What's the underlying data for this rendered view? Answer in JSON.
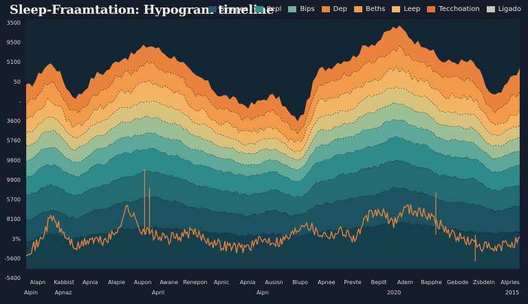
{
  "title": "Sleep-Fraamtation: Hypogram timeline",
  "legend": [
    {
      "label": "Semgee",
      "color": "#1f5966"
    },
    {
      "label": "Sepl",
      "color": "#33918e"
    },
    {
      "label": "Bips",
      "color": "#72b29d"
    },
    {
      "label": "Dep",
      "color": "#e8823c"
    },
    {
      "label": "Beths",
      "color": "#f09a4a"
    },
    {
      "label": "Leep",
      "color": "#f3b565"
    },
    {
      "label": "Tecchoation",
      "color": "#e6713a"
    },
    {
      "label": "Ligado",
      "color": "#c9c6bf"
    }
  ],
  "chart_data": {
    "type": "area",
    "title": "Sleep-Fraamtation: Hypogram timeline",
    "y_tick_labels": [
      "3500",
      "9500",
      "5100",
      "50",
      "-",
      "3600",
      "5760",
      "9800",
      "9900",
      "5700",
      "8100",
      "3%",
      "-5600",
      "-5400"
    ],
    "x_tick_labels_row1": [
      "Alapn",
      "Kabbist",
      "Apnia",
      "Alapie",
      "Aupon",
      "Awane",
      "Renepon",
      "Apnic",
      "Apnia",
      "Ausisn",
      "Blupo",
      "Apnee",
      "Prevte",
      "Beplit",
      "Adem",
      "Bapphe",
      "Gebode",
      "Zsbdein",
      "Alpries"
    ],
    "x_tick_labels_row2": [
      "Alpin",
      "Apnaz",
      "April",
      "Aipn",
      "2020",
      "2015"
    ],
    "x": [
      0,
      0.05,
      0.1,
      0.15,
      0.2,
      0.25,
      0.3,
      0.35,
      0.4,
      0.45,
      0.5,
      0.55,
      0.6,
      0.65,
      0.7,
      0.75,
      0.8,
      0.85,
      0.9,
      0.95,
      1.0
    ],
    "series": [
      {
        "color": "#e8823c",
        "values": [
          0.74,
          0.84,
          0.7,
          0.8,
          0.87,
          0.92,
          0.87,
          0.78,
          0.7,
          0.66,
          0.7,
          0.6,
          0.82,
          0.86,
          0.93,
          1.0,
          0.93,
          0.85,
          0.85,
          0.7,
          0.81
        ]
      },
      {
        "color": "#f09a4a",
        "values": [
          0.67,
          0.76,
          0.63,
          0.72,
          0.8,
          0.84,
          0.8,
          0.71,
          0.64,
          0.6,
          0.63,
          0.55,
          0.75,
          0.79,
          0.85,
          0.91,
          0.85,
          0.78,
          0.77,
          0.64,
          0.71
        ]
      },
      {
        "color": "#f3b565",
        "values": [
          0.6,
          0.68,
          0.57,
          0.65,
          0.72,
          0.76,
          0.72,
          0.64,
          0.58,
          0.54,
          0.57,
          0.5,
          0.68,
          0.71,
          0.77,
          0.82,
          0.77,
          0.7,
          0.69,
          0.58,
          0.63
        ]
      },
      {
        "color": "#d9c27c",
        "values": [
          0.54,
          0.61,
          0.52,
          0.59,
          0.65,
          0.68,
          0.65,
          0.58,
          0.53,
          0.49,
          0.52,
          0.46,
          0.61,
          0.64,
          0.7,
          0.74,
          0.7,
          0.63,
          0.62,
          0.53,
          0.57
        ]
      },
      {
        "color": "#9cbf95",
        "values": [
          0.48,
          0.55,
          0.47,
          0.53,
          0.59,
          0.61,
          0.58,
          0.52,
          0.48,
          0.45,
          0.47,
          0.42,
          0.55,
          0.58,
          0.63,
          0.67,
          0.63,
          0.57,
          0.56,
          0.48,
          0.52
        ]
      },
      {
        "color": "#5ea89a",
        "values": [
          0.42,
          0.48,
          0.41,
          0.47,
          0.52,
          0.54,
          0.51,
          0.46,
          0.43,
          0.4,
          0.42,
          0.38,
          0.49,
          0.52,
          0.56,
          0.6,
          0.56,
          0.51,
          0.5,
          0.43,
          0.46
        ]
      },
      {
        "color": "#2f8b8a",
        "values": [
          0.35,
          0.4,
          0.35,
          0.4,
          0.45,
          0.47,
          0.44,
          0.4,
          0.37,
          0.35,
          0.37,
          0.33,
          0.42,
          0.45,
          0.48,
          0.52,
          0.49,
          0.44,
          0.43,
          0.37,
          0.4
        ]
      },
      {
        "color": "#236d72",
        "values": [
          0.27,
          0.31,
          0.27,
          0.31,
          0.35,
          0.37,
          0.35,
          0.31,
          0.29,
          0.27,
          0.29,
          0.26,
          0.33,
          0.36,
          0.39,
          0.42,
          0.39,
          0.35,
          0.34,
          0.29,
          0.31
        ]
      },
      {
        "color": "#1b5360",
        "values": [
          0.16,
          0.2,
          0.17,
          0.21,
          0.24,
          0.26,
          0.24,
          0.21,
          0.19,
          0.18,
          0.2,
          0.18,
          0.23,
          0.25,
          0.27,
          0.3,
          0.28,
          0.24,
          0.23,
          0.2,
          0.22
        ]
      },
      {
        "color": "#163f4e",
        "values": [
          0.07,
          0.1,
          0.08,
          0.1,
          0.12,
          0.13,
          0.12,
          0.11,
          0.1,
          0.09,
          0.1,
          0.09,
          0.11,
          0.12,
          0.13,
          0.15,
          0.14,
          0.12,
          0.11,
          0.1,
          0.11
        ]
      }
    ],
    "fragmentation_line": {
      "color": "#e8823c",
      "values": [
        0.05,
        0.08,
        0.2,
        0.12,
        0.06,
        0.1,
        0.09,
        0.12,
        0.24,
        0.15,
        0.12,
        0.1,
        0.11,
        0.13,
        0.11,
        0.08,
        0.07,
        0.06,
        0.08,
        0.1,
        0.09,
        0.12,
        0.18,
        0.13,
        0.12,
        0.14,
        0.1,
        0.2,
        0.22,
        0.17,
        0.24,
        0.22,
        0.2,
        0.15,
        0.11,
        0.09,
        0.07,
        0.05,
        0.08,
        0.09
      ]
    }
  }
}
